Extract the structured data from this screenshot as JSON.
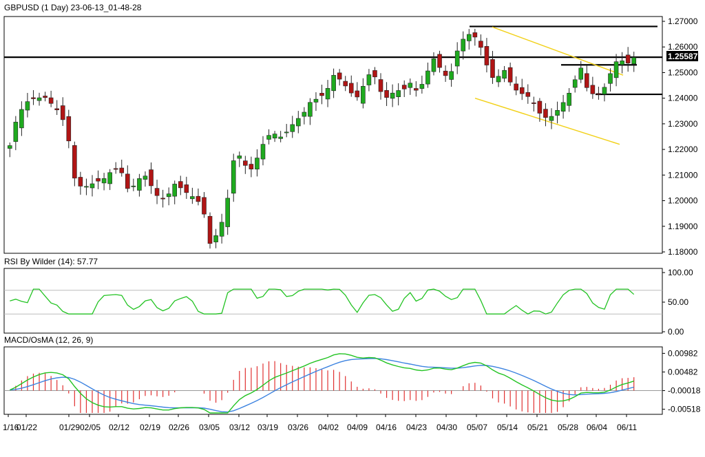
{
  "header": {
    "title": "GBPUSD (1 Day) 23-06-13_01-48-28"
  },
  "price_axis": {
    "ticks": [
      "1.27000",
      "1.26000",
      "1.25000",
      "1.24000",
      "1.23000",
      "1.22000",
      "1.21000",
      "1.20000",
      "1.19000",
      "1.18000"
    ],
    "current_label": "1.25587"
  },
  "rsi": {
    "title": "RSI By Wilder (14): 57.77",
    "ticks": [
      "100.00",
      "50.00",
      "0.00"
    ]
  },
  "macd": {
    "title": "MACD/OsMA (12, 26, 9)",
    "ticks": [
      "0.00982",
      "0.00482",
      "-0.00018",
      "-0.00518"
    ]
  },
  "date_axis": {
    "labels": [
      "1/16",
      "01/22",
      "01/29",
      "02/05",
      "02/12",
      "02/19",
      "02/26",
      "03/05",
      "03/12",
      "03/19",
      "03/26",
      "04/02",
      "04/09",
      "04/16",
      "04/23",
      "04/30",
      "05/07",
      "05/14",
      "05/21",
      "05/28",
      "06/04",
      "06/11"
    ]
  },
  "colors": {
    "bull": "#1faa1f",
    "bear": "#b01515",
    "rsi": "#22c322",
    "macd_signal": "#3b82e0",
    "macd_line": "#22c322",
    "osma": "#e03030",
    "channel": "#f2d11a"
  },
  "chart_data": {
    "type": "candlestick",
    "symbol": "GBPUSD",
    "timeframe": "1 Day",
    "ylim": [
      1.18,
      1.27
    ],
    "x": [
      "01/16",
      "01/22",
      "01/29",
      "02/05",
      "02/12",
      "02/19",
      "02/26",
      "03/05",
      "03/12",
      "03/19",
      "03/26",
      "04/02",
      "04/09",
      "04/16",
      "04/23",
      "04/30",
      "05/07",
      "05/14",
      "05/21",
      "05/28",
      "06/04",
      "06/11"
    ],
    "close_approx": [
      1.229,
      1.239,
      1.235,
      1.207,
      1.21,
      1.206,
      1.204,
      1.185,
      1.219,
      1.22,
      1.229,
      1.247,
      1.243,
      1.249,
      1.244,
      1.257,
      1.258,
      1.246,
      1.238,
      1.233,
      1.244,
      1.2559
    ],
    "levels": [
      1.268,
      1.256,
      1.253,
      1.2415
    ],
    "channel": {
      "upper": [
        [
          1.2678,
          1.249
        ]
      ],
      "lower": [
        [
          1.24,
          1.222
        ]
      ]
    },
    "rsi": {
      "range": [
        0,
        100
      ],
      "levels": [
        70,
        30
      ],
      "last": 57.77
    },
    "macd": {
      "range": [
        -0.00518,
        0.00982
      ],
      "fast": 12,
      "slow": 26,
      "signal": 9
    }
  }
}
